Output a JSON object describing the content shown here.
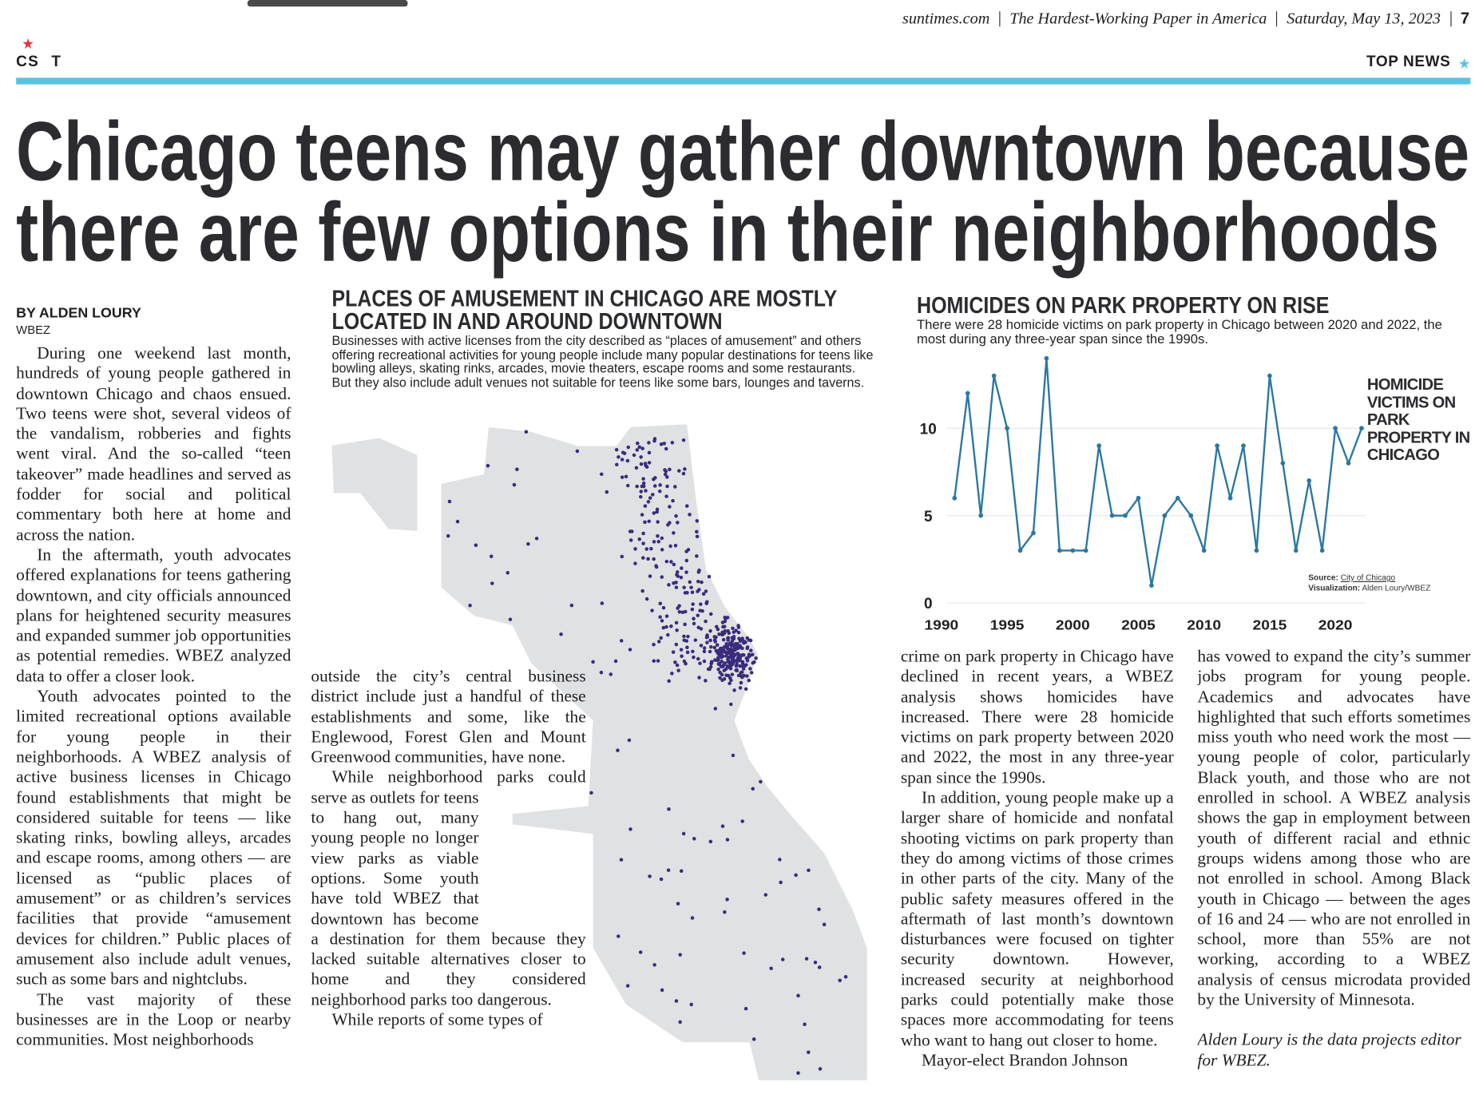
{
  "header": {
    "site": "suntimes.com",
    "slogan": "The Hardest-Working Paper in America",
    "date": "Saturday, May 13, 2023",
    "page": "7",
    "logo": [
      "CS",
      "T"
    ],
    "section": "TOP NEWS"
  },
  "headline": [
    "Chicago teens may gather downtown because",
    "there are few options in their neighborhoods"
  ],
  "byline": {
    "name": "BY ALDEN LOURY",
    "org": "WBEZ"
  },
  "body": {
    "columns": [
      {
        "paragraphs": [
          "During one weekend last month, hundreds of young people gathered in downtown Chicago and chaos ensued. Two teens were shot, several videos of the vandalism, robberies and fights went viral. And the so-called “teen takeover” made headlines and served as fodder for social and political commentary both here at home and across the nation.",
          "In the aftermath, youth advocates offered explanations for teens gathering downtown, and city officials announced plans for heightened security measures and expanded summer job opportunities as potential remedies. WBEZ analyzed data to offer a closer look.",
          "Youth advocates pointed to the limited recreational options available for young people in their neighborhoods. A WBEZ analysis of active business licenses in Chicago found establishments that might be considered suitable for teens — like skating rinks, bowling alleys, arcades and escape rooms, among others — are licensed as “public places of amusement” or as children’s services facilities that provide “amusement devices for children.” Public places of amusement also include adult venues, such as some bars and nightclubs.",
          "The vast majority of these businesses are in the Loop or nearby communities. Most neighborhoods"
        ]
      },
      {
        "paragraphs": [
          "outside the city’s central business district include just a handful of these establishments and some, like the Englewood, Forest Glen and Mount Greenwood communities, have none.",
          "While neighborhood parks could serve as outlets for teens to hang out, many young people no longer view parks as viable options. Some youth have told WBEZ that downtown has become a destination for them because they lacked suitable alternatives closer to home and they considered neighborhood parks too dangerous.",
          "While reports of some types of"
        ]
      },
      {
        "paragraphs": [
          "crime on park property in Chicago have declined in recent years, a WBEZ analysis shows homicides have increased. There were 28 homicide victims on park property between 2020 and 2022, the most in any three-year span since the 1990s.",
          "In addition, young people make up a larger share of homicide and nonfatal shooting victims on park property than they do among victims of those crimes in other parts of the city. Many of the public safety measures offered in the aftermath of last month’s downtown disturbances were focused on tighter security downtown. However, increased security at neighborhood parks could potentially make those spaces more accommodating for teens who want to hang out closer to home.",
          "Mayor-elect Brandon Johnson"
        ]
      },
      {
        "paragraphs": [
          "has vowed to expand the city’s summer jobs program for young people. Academics and advocates have highlighted that such efforts sometimes miss youth who need work the most — young people of color, particularly Black youth, and those who are not enrolled in school. A WBEZ analysis shows the gap in employment between youth of different racial and ethnic groups widens among those who are not enrolled in school. Among Black youth in Chicago — between the ages of 16 and 24 — who are not enrolled in school, more than 55% are not working, according to a WBEZ analysis of census microdata provided by the University of Minnesota."
        ]
      }
    ],
    "tagline": "Alden Loury is the data projects editor for WBEZ."
  },
  "map_graphic": {
    "title": [
      "PLACES OF AMUSEMENT IN CHICAGO ARE MOSTLY",
      "LOCATED IN AND AROUND DOWNTOWN"
    ],
    "description": "Businesses with active licenses from the city described as “places of amusement” and others offering recreational activities for young people include many popular destinations for teens like bowling alleys, skating rinks, arcades, movie theaters, escape rooms and some restaurants. But they also include adult venues not suitable for teens like some bars, lounges and taverns."
  },
  "chart_data": {
    "type": "line",
    "title": "HOMICIDES ON PARK PROPERTY ON RISE",
    "subtitle": "There were 28 homicide victims on park property in Chicago between 2020 and 2022, the most during any three-year span since the 1990s.",
    "x": [
      1991,
      1992,
      1993,
      1994,
      1995,
      1996,
      1997,
      1998,
      1999,
      2000,
      2001,
      2002,
      2003,
      2004,
      2005,
      2006,
      2007,
      2008,
      2009,
      2010,
      2011,
      2012,
      2013,
      2014,
      2015,
      2016,
      2017,
      2018,
      2019,
      2020,
      2021,
      2022
    ],
    "series": [
      {
        "name": "HOMICIDE VICTIMS ON PARK PROPERTY IN CHICAGO",
        "color": "#2b77a3",
        "values": [
          6,
          12,
          5,
          13,
          10,
          3,
          4,
          14,
          3,
          3,
          3,
          9,
          5,
          5,
          6,
          1,
          5,
          6,
          5,
          3,
          9,
          6,
          9,
          3,
          13,
          8,
          3,
          7,
          3,
          10,
          8,
          10
        ]
      }
    ],
    "xlim": [
      1990,
      2023
    ],
    "xticks": [
      1990,
      1995,
      2000,
      2005,
      2010,
      2015,
      2020
    ],
    "ylim": [
      0,
      14
    ],
    "yticks": [
      0,
      5,
      10
    ],
    "grid": true,
    "source_label": "Source:",
    "source": "City of Chicago",
    "visualization_label": "Visualization:",
    "visualization": "Alden Loury/WBEZ"
  }
}
